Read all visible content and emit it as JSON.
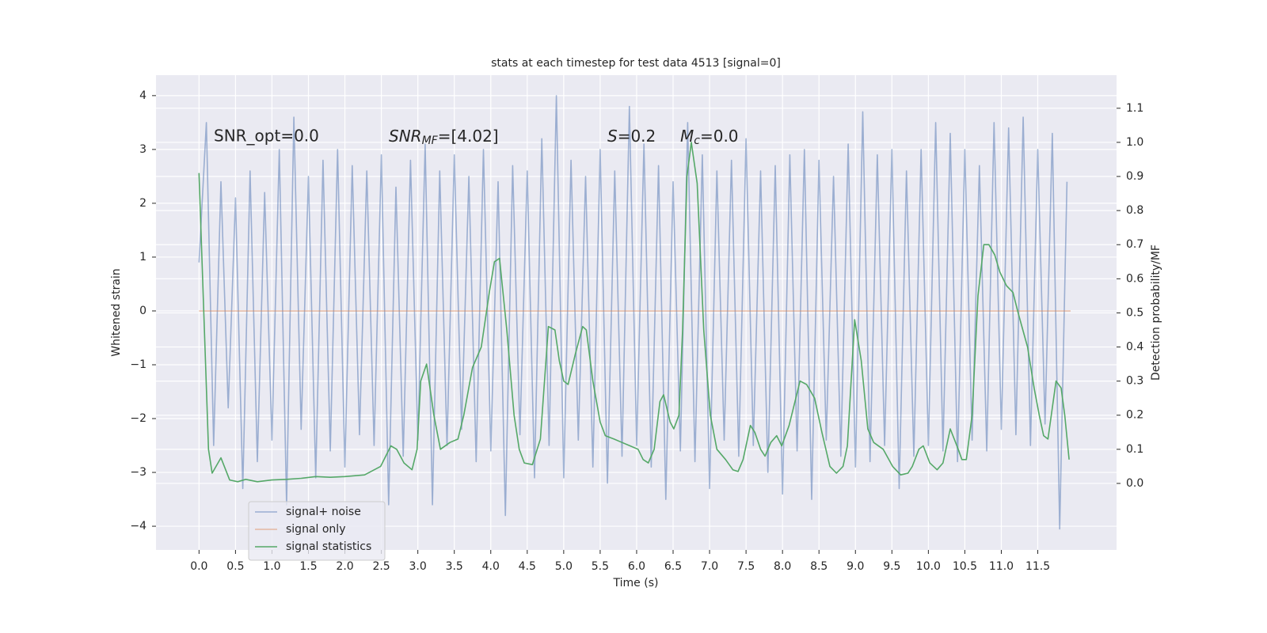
{
  "chart_data": {
    "type": "line",
    "title": "stats at each timestep for test data 4513 [signal=0]",
    "xlabel": "Time (s)",
    "ylabel": "Whitened strain",
    "y2label": "Detection probability/MF",
    "annotations": [
      {
        "text": "SNR_opt=0.0"
      },
      {
        "math": "SNR",
        "sub": "MF",
        "text": "=[4.02]"
      },
      {
        "math": "S",
        "text": "=0.2"
      },
      {
        "math": "M",
        "sub": "c",
        "text": "=0.0"
      }
    ],
    "xlim": [
      -0.59,
      12.58
    ],
    "ylim": [
      -4.44,
      4.38
    ],
    "y2lim": [
      -0.195,
      1.197
    ],
    "xticks": [
      {
        "value": 0,
        "label": "0.0"
      },
      0.5,
      {
        "value": 1,
        "label": "1.0"
      },
      1.5,
      {
        "value": 2,
        "label": "2.0"
      },
      2.5,
      {
        "value": 3,
        "label": "3.0"
      },
      3.5,
      {
        "value": 4,
        "label": "4.0"
      },
      4.5,
      {
        "value": 5,
        "label": "5.0"
      },
      5.5,
      {
        "value": 6,
        "label": "6.0"
      },
      6.5,
      {
        "value": 7,
        "label": "7.0"
      },
      7.5,
      {
        "value": 8,
        "label": "8.0"
      },
      8.5,
      {
        "value": 9,
        "label": "9.0"
      },
      9.5,
      {
        "value": 10,
        "label": "10.0"
      },
      10.5,
      {
        "value": 11,
        "label": "11.0"
      },
      11.5
    ],
    "yticks": [
      {
        "value": -4,
        "label": "−4"
      },
      {
        "value": -3,
        "label": "−3"
      },
      {
        "value": -2,
        "label": "−2"
      },
      {
        "value": -1,
        "label": "−1"
      },
      0,
      1,
      2,
      3,
      4
    ],
    "y2ticks": [
      {
        "value": 0,
        "label": "0.0"
      },
      0.1,
      0.2,
      0.3,
      0.4,
      0.5,
      0.6,
      0.7,
      0.8,
      0.9,
      {
        "value": 1,
        "label": "1.0"
      },
      1.1
    ],
    "grid": true,
    "legend": "lower left",
    "series": [
      {
        "name": "signal+ noise",
        "color": "#4c72b0",
        "opacity": 0.5,
        "x": [
          0.0,
          0.1,
          0.2,
          0.3,
          0.4,
          0.5,
          0.6,
          0.7,
          0.8,
          0.9,
          1.0,
          1.1,
          1.2,
          1.3,
          1.4,
          1.5,
          1.6,
          1.7,
          1.8,
          1.9,
          2.0,
          2.1,
          2.2,
          2.3,
          2.4,
          2.5,
          2.6,
          2.7,
          2.8,
          2.9,
          3.0,
          3.1,
          3.2,
          3.3,
          3.4,
          3.5,
          3.6,
          3.7,
          3.8,
          3.9,
          4.0,
          4.1,
          4.2,
          4.3,
          4.4,
          4.5,
          4.6,
          4.7,
          4.8,
          4.9,
          5.0,
          5.1,
          5.2,
          5.3,
          5.4,
          5.5,
          5.6,
          5.7,
          5.8,
          5.9,
          6.0,
          6.1,
          6.2,
          6.3,
          6.4,
          6.5,
          6.6,
          6.7,
          6.8,
          6.9,
          7.0,
          7.1,
          7.2,
          7.3,
          7.4,
          7.5,
          7.6,
          7.7,
          7.8,
          7.9,
          8.0,
          8.1,
          8.2,
          8.3,
          8.4,
          8.5,
          8.6,
          8.7,
          8.8,
          8.9,
          9.0,
          9.1,
          9.2,
          9.3,
          9.4,
          9.5,
          9.6,
          9.7,
          9.8,
          9.9,
          10.0,
          10.1,
          10.2,
          10.3,
          10.4,
          10.5,
          10.6,
          10.7,
          10.8,
          10.9,
          11.0,
          11.1,
          11.2,
          11.3,
          11.4,
          11.5,
          11.6,
          11.7,
          11.8,
          11.9
        ],
        "values": [
          0.9,
          3.5,
          -2.5,
          2.4,
          -1.8,
          2.1,
          -3.3,
          2.6,
          -2.8,
          2.2,
          -2.4,
          3.0,
          -3.6,
          3.6,
          -2.2,
          2.5,
          -3.1,
          2.8,
          -2.6,
          3.0,
          -2.9,
          2.7,
          -2.3,
          2.6,
          -2.5,
          2.9,
          -3.6,
          2.3,
          -2.7,
          2.8,
          -2.4,
          3.1,
          -3.6,
          2.6,
          -2.5,
          2.9,
          -2.2,
          2.5,
          -2.8,
          3.0,
          -2.6,
          2.4,
          -3.8,
          2.7,
          -2.3,
          2.6,
          -3.1,
          3.2,
          -2.5,
          4.0,
          -3.1,
          2.8,
          -2.4,
          2.5,
          -2.9,
          3.0,
          -3.2,
          2.6,
          -2.7,
          3.8,
          -2.5,
          3.1,
          -2.9,
          2.7,
          -3.5,
          2.4,
          -2.6,
          3.5,
          -2.8,
          2.9,
          -3.3,
          2.6,
          -2.4,
          2.8,
          -2.7,
          3.2,
          -2.5,
          2.6,
          -3.0,
          2.7,
          -3.4,
          2.9,
          -2.6,
          3.0,
          -3.5,
          2.8,
          -2.4,
          2.5,
          -2.7,
          3.1,
          -2.9,
          3.7,
          -2.8,
          2.9,
          -2.5,
          3.0,
          -3.3,
          2.6,
          -2.7,
          3.0,
          -2.5,
          3.5,
          -2.6,
          3.3,
          -2.8,
          3.0,
          -2.4,
          2.7,
          -2.6,
          3.5,
          -2.2,
          3.4,
          -2.3,
          3.6,
          -2.5,
          3.0,
          -2.1,
          3.3,
          -4.05,
          2.4
        ]
      },
      {
        "name": "signal only",
        "color": "#dd8452",
        "opacity": 0.5,
        "x": [
          0.0,
          11.95
        ],
        "values": [
          0,
          0
        ]
      },
      {
        "name": "signal statistics",
        "color": "#55a868",
        "opacity": 1,
        "axis": "y2",
        "x": [
          0.0,
          0.13,
          0.18,
          0.3,
          0.42,
          0.53,
          0.64,
          0.8,
          1.0,
          1.2,
          1.4,
          1.6,
          1.8,
          2.0,
          2.27,
          2.49,
          2.63,
          2.71,
          2.81,
          2.92,
          2.99,
          3.04,
          3.12,
          3.22,
          3.31,
          3.44,
          3.55,
          3.63,
          3.75,
          3.87,
          3.98,
          4.05,
          4.12,
          4.22,
          4.32,
          4.39,
          4.46,
          4.57,
          4.68,
          4.79,
          4.88,
          4.94,
          5.0,
          5.06,
          5.16,
          5.26,
          5.31,
          5.4,
          5.5,
          5.57,
          5.69,
          5.8,
          5.91,
          6.02,
          6.09,
          6.16,
          6.24,
          6.32,
          6.37,
          6.46,
          6.51,
          6.58,
          6.63,
          6.69,
          6.75,
          6.83,
          6.92,
          7.01,
          7.1,
          7.22,
          7.32,
          7.39,
          7.46,
          7.56,
          7.62,
          7.7,
          7.76,
          7.84,
          7.92,
          7.99,
          8.09,
          8.24,
          8.33,
          8.44,
          8.54,
          8.65,
          8.74,
          8.83,
          8.89,
          8.99,
          9.08,
          9.17,
          9.25,
          9.38,
          9.51,
          9.62,
          9.72,
          9.78,
          9.87,
          9.93,
          10.02,
          10.12,
          10.2,
          10.3,
          10.41,
          10.46,
          10.52,
          10.6,
          10.68,
          10.76,
          10.83,
          10.91,
          10.98,
          11.07,
          11.16,
          11.23,
          11.36,
          11.45,
          11.52,
          11.58,
          11.64,
          11.75,
          11.82,
          11.87,
          11.93
        ],
        "values": [
          0.91,
          0.1,
          0.03,
          0.075,
          0.01,
          0.005,
          0.012,
          0.005,
          0.01,
          0.012,
          0.015,
          0.02,
          0.018,
          0.02,
          0.025,
          0.05,
          0.11,
          0.1,
          0.06,
          0.04,
          0.1,
          0.3,
          0.35,
          0.2,
          0.1,
          0.12,
          0.13,
          0.2,
          0.34,
          0.4,
          0.56,
          0.65,
          0.66,
          0.45,
          0.2,
          0.1,
          0.06,
          0.055,
          0.13,
          0.46,
          0.45,
          0.36,
          0.3,
          0.29,
          0.38,
          0.46,
          0.45,
          0.3,
          0.18,
          0.14,
          0.13,
          0.12,
          0.11,
          0.1,
          0.07,
          0.06,
          0.1,
          0.24,
          0.26,
          0.18,
          0.16,
          0.2,
          0.45,
          0.9,
          1.0,
          0.88,
          0.45,
          0.2,
          0.1,
          0.07,
          0.04,
          0.035,
          0.07,
          0.17,
          0.15,
          0.1,
          0.08,
          0.12,
          0.14,
          0.11,
          0.17,
          0.3,
          0.29,
          0.25,
          0.15,
          0.05,
          0.03,
          0.05,
          0.11,
          0.48,
          0.36,
          0.16,
          0.12,
          0.1,
          0.05,
          0.025,
          0.03,
          0.05,
          0.1,
          0.11,
          0.06,
          0.04,
          0.06,
          0.16,
          0.1,
          0.07,
          0.07,
          0.2,
          0.55,
          0.7,
          0.7,
          0.67,
          0.62,
          0.58,
          0.56,
          0.5,
          0.4,
          0.28,
          0.2,
          0.14,
          0.13,
          0.3,
          0.28,
          0.2,
          0.07
        ]
      }
    ]
  }
}
